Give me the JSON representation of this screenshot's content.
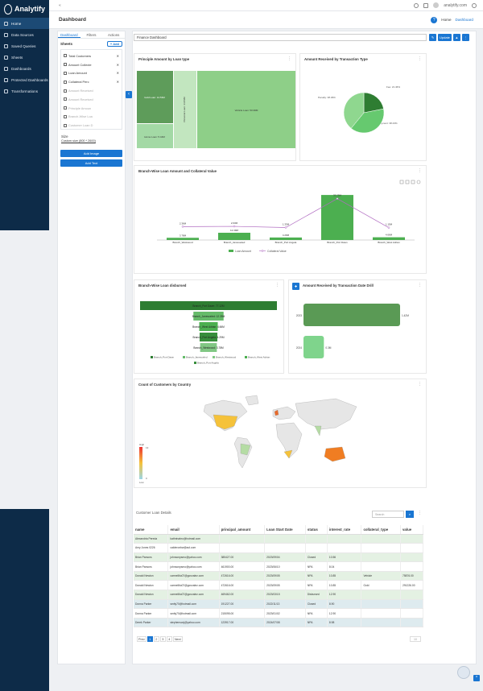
{
  "app": {
    "name": "Analytify"
  },
  "sidebar": {
    "items": [
      {
        "label": "Home"
      },
      {
        "label": "Data Sources"
      },
      {
        "label": "Saved Queries"
      },
      {
        "label": "Sheets"
      },
      {
        "label": "Dashboards"
      },
      {
        "label": "Protected Dashboards"
      },
      {
        "label": "Transformations"
      }
    ]
  },
  "topbar": {
    "user": "analytify.com"
  },
  "header": {
    "title": "Dashboard",
    "crumb_home": "Home",
    "crumb_current": "Dashboard"
  },
  "panel": {
    "tabs": [
      "Dashboard",
      "Filters",
      "Actions"
    ],
    "sheets_title": "Sheets",
    "add_label": "+ Add",
    "sheets": [
      {
        "name": "Total Customers",
        "active": true
      },
      {
        "name": "Amount Collecte",
        "active": true
      },
      {
        "name": "Loan Amount",
        "active": true
      },
      {
        "name": "Collateral Perc",
        "active": true
      },
      {
        "name": "Amount Received",
        "active": false
      },
      {
        "name": "Amount Received",
        "active": false
      },
      {
        "name": "Principle Amoun",
        "active": false
      },
      {
        "name": "Branch-Wise Loa",
        "active": false
      },
      {
        "name": "Customer Loan D",
        "active": false
      }
    ],
    "size_label": "Size",
    "size_value": "Custom size (800 * 2600)",
    "add_image": "Add Image",
    "add_text": "Add Text"
  },
  "dashboard": {
    "name": "Finance Dashboard",
    "update_label": "Update"
  },
  "cards": {
    "treemap": "Principle Amount by Loan type",
    "pie": "Amount Received by Transaction Type",
    "combo": "Branch-Wise Loan Amount and Collateral Value",
    "funnel": "Branch-Wise Loan disbursed",
    "drill": "Amount Received by Transaction Date Drill",
    "map": "Count of Customers by Country"
  },
  "chart_data": [
    {
      "type": "treemap",
      "title": "Principle Amount by Loan type",
      "items": [
        {
          "label": "Gold Loan: 14.53M",
          "value": 14.53
        },
        {
          "label": "Home Loan: 5.42M",
          "value": 5.42
        },
        {
          "label": "Personal Loan: 14.83M",
          "value": 14.83
        },
        {
          "label": "Vehicle Loan: 50.99M",
          "value": 50.99
        }
      ]
    },
    {
      "type": "pie",
      "title": "Amount Received by Transaction Type",
      "slices": [
        {
          "label": "Fee: 21.46%",
          "value": 21.46,
          "color": "#2e7d32"
        },
        {
          "label": "Payment: 38.23%",
          "value": 38.23,
          "color": "#66c96f"
        },
        {
          "label": "Penalty: 38.29%",
          "value": 38.29,
          "color": "#8fd78f"
        }
      ]
    },
    {
      "type": "bar",
      "title": "Branch-Wise Loan Amount and Collateral Value",
      "categories": [
        "Branch_Westwood",
        "Branch_Janesueled",
        "Branch_Port Angela",
        "Branch_Port Dawn",
        "Branch_West Adrian"
      ],
      "series": [
        {
          "name": "Loan Amount",
          "values": [
            3.78,
            12.39,
            4.29,
            77.12,
            4.66
          ],
          "labels": [
            "3.78M",
            "12.39M",
            "4.29M",
            "",
            "4.66M"
          ]
        },
        {
          "name": "Collateral Value",
          "values": [
            2.36,
            2.63,
            1.33,
            33.25,
            1.15
          ],
          "labels": [
            "2.36M",
            "2.63M",
            "1.33M",
            "33.25M",
            "1.15M"
          ]
        }
      ]
    },
    {
      "type": "funnel",
      "title": "Branch-Wise Loan disbursed",
      "stages": [
        {
          "label": "Branch_Port Dawn: 77.12M",
          "value": 77.12,
          "color": "#2e7d32"
        },
        {
          "label": "Branch_Janesueled: 12.39M",
          "value": 12.39,
          "color": "#66bb6a"
        },
        {
          "label": "Branch_Westwood: 3.78M",
          "value": 3.78,
          "color": "#81c784"
        },
        {
          "label": "Branch_West Adrian: 4.66M",
          "value": 4.66,
          "color": "#4caf50"
        },
        {
          "label": "Branch_Port Angela: 4.29M",
          "value": 4.29,
          "color": "#388e3c"
        }
      ],
      "legend": [
        "Branch_Port Dawn",
        "Branch_Janesueled",
        "Branch_Westwood",
        "Branch_West Adrian",
        "Branch_Port Angela"
      ]
    },
    {
      "type": "bar",
      "title": "Amount Received by Transaction Date Drill",
      "orientation": "horizontal",
      "categories": [
        "2023",
        "2024"
      ],
      "values": [
        1.42,
        0.3
      ],
      "labels": [
        "1.42M",
        "0.3M"
      ]
    },
    {
      "type": "heatmap",
      "title": "Count of Customers by Country",
      "legend_high": "High",
      "legend_low": "Low",
      "max": 13,
      "min": 0
    }
  ],
  "table": {
    "title": "Customer Loan Details",
    "search_placeholder": "Search",
    "columns": [
      "name",
      "email",
      "principal_amount",
      "Loan Start Date",
      "status",
      "interest_rate",
      "collateral_type",
      "value"
    ],
    "rows": [
      [
        "Alexandria Pereda",
        "kathrinabro@hotmail.com",
        "",
        "",
        "",
        "",
        "",
        ""
      ],
      [
        "Amy Jones 0226",
        "calderonbw@aol.com",
        "",
        "",
        "",
        "",
        "",
        ""
      ],
      [
        "Brian Parsons",
        "johnsonpsmo@yahoo.com",
        "385427.00",
        "2023/09/04",
        "Closed",
        "10.56",
        "",
        ""
      ],
      [
        "Brian Parsons",
        "johnsonpsmo@yahoo.com",
        "461900.00",
        "2023/06/10",
        "NPA",
        "8.04",
        "",
        ""
      ],
      [
        "Donald Newton",
        "carmellitu07@gonzalez.com",
        "472616.00",
        "2023/09/05",
        "NPA",
        "10.85",
        "Vehicle",
        "75876.00"
      ],
      [
        "Donald Newton",
        "carmellitu07@gonzalez.com",
        "472616.00",
        "2023/09/05",
        "NPA",
        "10.85",
        "Gold",
        "291226.00"
      ],
      [
        "Donald Newton",
        "carmellitu07@gonzalez.com",
        "469462.00",
        "2023/03/15",
        "Disbursed",
        "12.90",
        "",
        ""
      ],
      [
        "Donna Parker",
        "smity70@hotmail.com",
        "191227.00",
        "2022/11/13",
        "Closed",
        "8.90",
        "",
        ""
      ],
      [
        "Donna Parker",
        "smity70@hotmail.com",
        "215095.00",
        "2023/01/02",
        "NPA",
        "12.90",
        "",
        ""
      ],
      [
        "Derek Parker",
        "stephensonj@yahoo.com",
        "123917.00",
        "2024/07/08",
        "NPA",
        "8.98",
        "",
        ""
      ]
    ],
    "pager": {
      "prev": "Prev",
      "pages": [
        "1",
        "2",
        "3",
        "4"
      ],
      "next": "Next"
    }
  }
}
